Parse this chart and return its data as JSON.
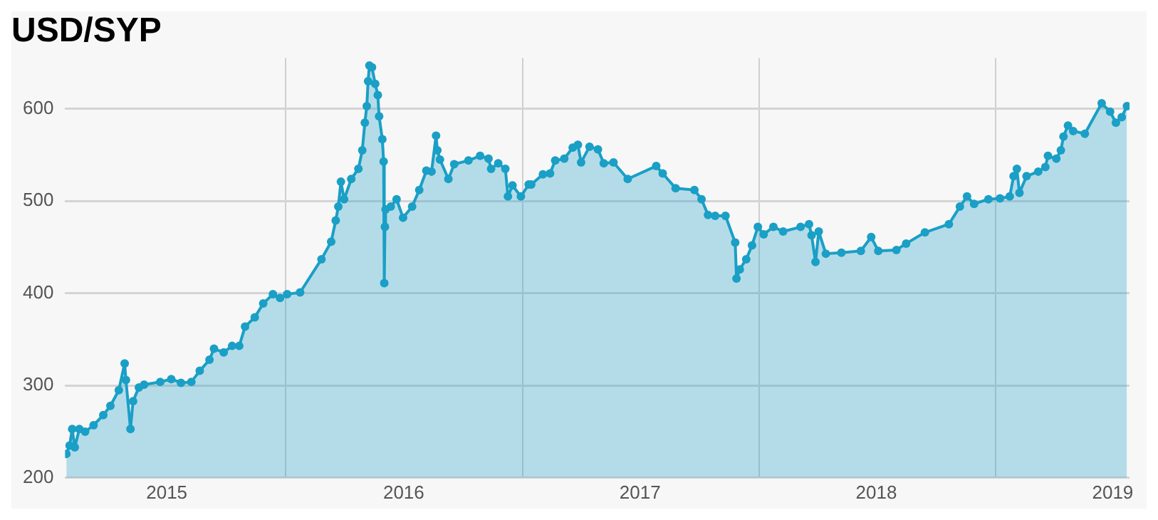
{
  "chart_data": {
    "type": "area",
    "title": "USD/SYP",
    "xlim": [
      "2015-01-25",
      "2019-07-27"
    ],
    "xticks": [
      {
        "value": "2015-07-01",
        "label": "2015"
      },
      {
        "value": "2016-01-01",
        "label": null
      },
      {
        "value": "2016-07-01",
        "label": "2016"
      },
      {
        "value": "2017-01-01",
        "label": null
      },
      {
        "value": "2017-07-01",
        "label": "2017"
      },
      {
        "value": "2018-01-01",
        "label": null
      },
      {
        "value": "2018-07-01",
        "label": "2018"
      },
      {
        "value": "2019-01-01",
        "label": null
      },
      {
        "value": "2019-07-01",
        "label": "2019"
      }
    ],
    "ylim": [
      200,
      655
    ],
    "yticks": [
      200,
      300,
      400,
      500,
      600
    ],
    "grid": true,
    "marker": "circle",
    "legend": false,
    "series": [
      {
        "color": "#1a9fc6",
        "x": [
          "2015-01-27",
          "2015-02-01",
          "2015-02-05",
          "2015-02-09",
          "2015-02-16",
          "2015-02-25",
          "2015-03-10",
          "2015-03-25",
          "2015-04-05",
          "2015-04-18",
          "2015-04-27",
          "2015-04-29",
          "2015-05-06",
          "2015-05-10",
          "2015-05-19",
          "2015-05-27",
          "2015-06-21",
          "2015-07-08",
          "2015-07-23",
          "2015-08-08",
          "2015-08-21",
          "2015-09-05",
          "2015-09-12",
          "2015-09-27",
          "2015-10-10",
          "2015-10-21",
          "2015-10-30",
          "2015-11-14",
          "2015-11-27",
          "2015-12-12",
          "2015-12-23",
          "2016-01-03",
          "2016-01-23",
          "2016-02-25",
          "2016-03-11",
          "2016-03-18",
          "2016-03-22",
          "2016-03-26",
          "2016-03-31",
          "2016-04-11",
          "2016-04-22",
          "2016-04-28",
          "2016-05-02",
          "2016-05-05",
          "2016-05-07",
          "2016-05-09",
          "2016-05-13",
          "2016-05-18",
          "2016-05-22",
          "2016-05-24",
          "2016-05-29",
          "2016-05-31",
          "2016-06-01",
          "2016-06-02",
          "2016-06-03",
          "2016-06-11",
          "2016-06-20",
          "2016-06-30",
          "2016-07-14",
          "2016-07-25",
          "2016-08-05",
          "2016-08-13",
          "2016-08-20",
          "2016-08-22",
          "2016-08-26",
          "2016-09-08",
          "2016-09-17",
          "2016-10-09",
          "2016-10-27",
          "2016-11-09",
          "2016-11-13",
          "2016-11-24",
          "2016-12-05",
          "2016-12-09",
          "2016-12-16",
          "2016-12-29",
          "2017-01-10",
          "2017-01-14",
          "2017-02-01",
          "2017-02-12",
          "2017-02-20",
          "2017-03-06",
          "2017-03-19",
          "2017-03-27",
          "2017-04-01",
          "2017-04-14",
          "2017-04-27",
          "2017-05-06",
          "2017-05-21",
          "2017-06-12",
          "2017-07-26",
          "2017-08-05",
          "2017-08-25",
          "2017-09-23",
          "2017-10-04",
          "2017-10-14",
          "2017-10-25",
          "2017-11-10",
          "2017-11-25",
          "2017-11-27",
          "2017-12-02",
          "2017-12-12",
          "2017-12-21",
          "2017-12-30",
          "2018-01-08",
          "2018-01-23",
          "2018-02-07",
          "2018-03-06",
          "2018-03-19",
          "2018-03-23",
          "2018-03-29",
          "2018-04-03",
          "2018-04-14",
          "2018-05-08",
          "2018-06-07",
          "2018-06-23",
          "2018-07-04",
          "2018-08-01",
          "2018-08-16",
          "2018-09-14",
          "2018-10-21",
          "2018-11-07",
          "2018-11-18",
          "2018-11-29",
          "2018-12-21",
          "2019-01-08",
          "2019-01-23",
          "2019-01-29",
          "2019-02-03",
          "2019-02-07",
          "2019-02-18",
          "2019-03-08",
          "2019-03-19",
          "2019-03-23",
          "2019-04-05",
          "2019-04-12",
          "2019-04-16",
          "2019-04-23",
          "2019-05-01",
          "2019-05-19",
          "2019-06-14",
          "2019-06-27",
          "2019-07-06",
          "2019-07-15",
          "2019-07-23"
        ],
        "values": [
          226,
          235,
          253,
          233,
          253,
          250,
          257,
          268,
          278,
          295,
          324,
          306,
          253,
          283,
          298,
          301,
          304,
          307,
          303,
          304,
          316,
          328,
          340,
          336,
          343,
          343,
          364,
          374,
          389,
          399,
          395,
          399,
          401,
          437,
          456,
          479,
          494,
          521,
          502,
          524,
          535,
          555,
          585,
          603,
          630,
          647,
          645,
          627,
          615,
          592,
          567,
          543,
          411,
          472,
          491,
          494,
          502,
          482,
          494,
          512,
          533,
          532,
          571,
          555,
          545,
          524,
          540,
          544,
          549,
          546,
          535,
          541,
          535,
          505,
          517,
          505,
          518,
          518,
          529,
          530,
          544,
          546,
          558,
          561,
          542,
          559,
          556,
          541,
          542,
          524,
          538,
          530,
          514,
          512,
          502,
          485,
          484,
          484,
          455,
          416,
          426,
          437,
          452,
          472,
          464,
          472,
          467,
          472,
          475,
          463,
          434,
          467,
          443,
          444,
          446,
          461,
          446,
          447,
          454,
          466,
          475,
          494,
          505,
          497,
          502,
          503,
          505,
          527,
          535,
          509,
          527,
          532,
          537,
          549,
          546,
          555,
          570,
          582,
          576,
          573,
          606,
          597,
          585,
          591,
          603
        ]
      }
    ]
  }
}
